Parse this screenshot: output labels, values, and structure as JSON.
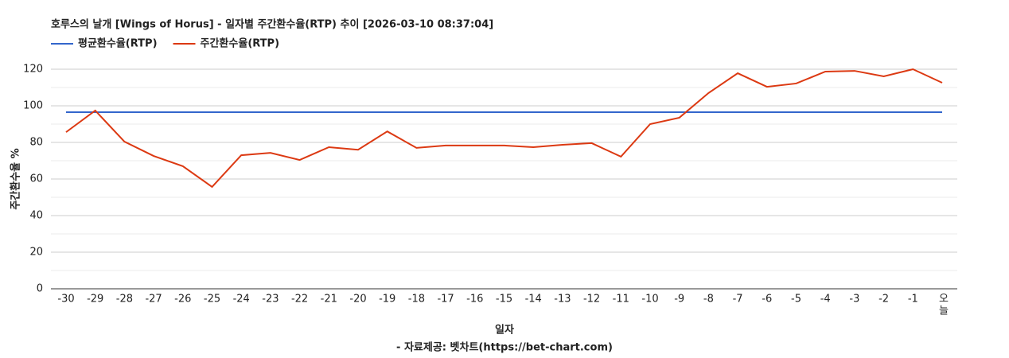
{
  "chart_data": {
    "type": "line",
    "title": "호루스의 날개 [Wings of Horus] - 일자별 주간환수율(RTP) 추이 [2026-03-10 08:37:04]",
    "x_label": "일자",
    "y_label": "주간환수율 %",
    "source": "- 자료제공: 벳차트(https://bet-chart.com)",
    "categories": [
      "-30",
      "-29",
      "-28",
      "-27",
      "-26",
      "-25",
      "-24",
      "-23",
      "-22",
      "-21",
      "-20",
      "-19",
      "-18",
      "-17",
      "-16",
      "-15",
      "-14",
      "-13",
      "-12",
      "-11",
      "-10",
      "-9",
      "-8",
      "-7",
      "-6",
      "-5",
      "-4",
      "-3",
      "-2",
      "-1",
      "오늘"
    ],
    "series": [
      {
        "name": "평균환수율(RTP)",
        "color": "#3366cc",
        "values": [
          96.5,
          96.5,
          96.5,
          96.5,
          96.5,
          96.5,
          96.5,
          96.5,
          96.5,
          96.5,
          96.5,
          96.5,
          96.5,
          96.5,
          96.5,
          96.5,
          96.5,
          96.5,
          96.5,
          96.5,
          96.5,
          96.5,
          96.5,
          96.5,
          96.5,
          96.5,
          96.5,
          96.5,
          96.5,
          96.5,
          96.5
        ]
      },
      {
        "name": "주간환수율(RTP)",
        "color": "#dc3912",
        "values": [
          85.6,
          97.4,
          80.4,
          72.6,
          67,
          55.7,
          73,
          74.3,
          70.4,
          77.4,
          76,
          86,
          77,
          78.3,
          78.3,
          78.3,
          77.4,
          78.7,
          79.6,
          72.2,
          90,
          93.5,
          107,
          117.8,
          110.4,
          112.2,
          118.7,
          119.1,
          116.1,
          120,
          112.6
        ]
      }
    ],
    "ylim": [
      0,
      120
    ],
    "yticks": [
      0,
      20,
      40,
      60,
      80,
      100,
      120
    ],
    "grid": true,
    "legend": "top-left"
  }
}
